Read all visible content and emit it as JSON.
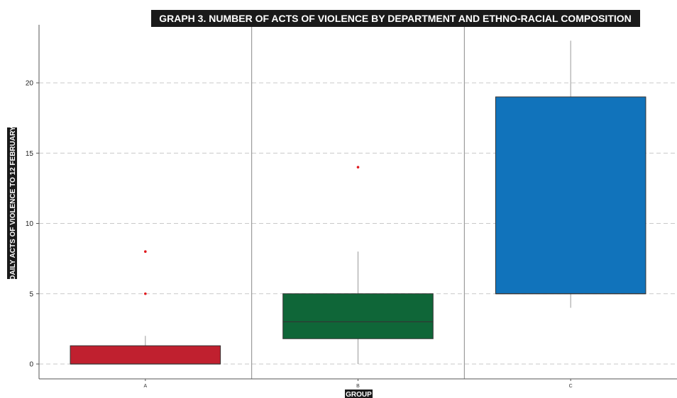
{
  "colors": {
    "title_bg": "#1a1a1a",
    "grid": "#c8c8c8",
    "axis": "#555555",
    "separator": "#888888",
    "whisker": "#999999",
    "box_edge": "#333333",
    "outlier": "#e0191e"
  },
  "chart_data": {
    "type": "box",
    "title": "GRAPH 3. NUMBER OF ACTS OF VIOLENCE BY DEPARTMENT AND ETHNO-RACIAL COMPOSITION",
    "xlabel": "GROUP",
    "ylabel": "DAILY ACTS OF VIOLENCE TO 12 FEBRUARY",
    "ylim": [
      -1,
      24
    ],
    "yticks": [
      0,
      5,
      10,
      15,
      20
    ],
    "grid": "horizontal dashed",
    "categories": [
      "A",
      "B",
      "C"
    ],
    "groups": [
      {
        "category": "A",
        "color": "#c0202f",
        "whisker_low": 0,
        "q1": 0,
        "median": 0,
        "q3": 1.3,
        "whisker_high": 2,
        "outliers": [
          5,
          8
        ]
      },
      {
        "category": "B",
        "color": "#0f6638",
        "whisker_low": 0,
        "q1": 1.8,
        "median": 3,
        "q3": 5,
        "whisker_high": 8,
        "outliers": [
          14
        ]
      },
      {
        "category": "C",
        "color": "#1173bb",
        "whisker_low": 4,
        "q1": 5,
        "median": 5,
        "q3": 19,
        "whisker_high": 23,
        "outliers": []
      }
    ]
  }
}
